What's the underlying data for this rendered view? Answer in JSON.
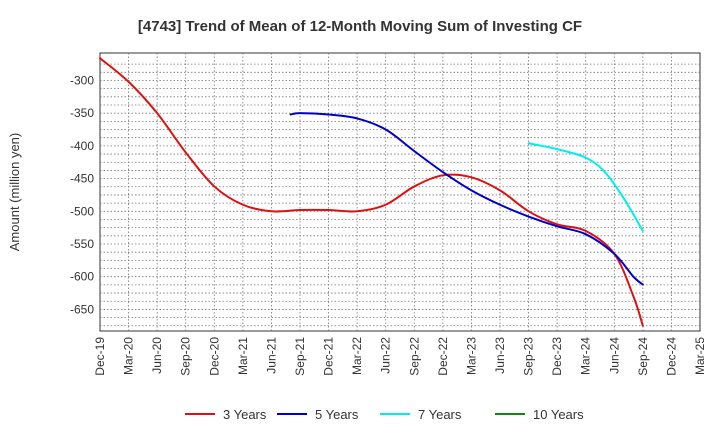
{
  "chart_data": {
    "type": "line",
    "title": "[4743]  Trend of Mean of 12-Month Moving Sum of Investing CF",
    "xlabel": "",
    "ylabel": "Amount (million yen)",
    "ylim": [
      -683,
      -258
    ],
    "yticks": [
      -300,
      -350,
      -400,
      -450,
      -500,
      -550,
      -600,
      -650
    ],
    "ytick_labels": [
      "-300",
      "-350",
      "-400",
      "-450",
      "-500",
      "-550",
      "-600",
      "-650"
    ],
    "categories": [
      "Dec-19",
      "Mar-20",
      "Jun-20",
      "Sep-20",
      "Dec-20",
      "Mar-21",
      "Jun-21",
      "Sep-21",
      "Dec-21",
      "Mar-22",
      "Jun-22",
      "Sep-22",
      "Dec-22",
      "Mar-23",
      "Jun-23",
      "Sep-23",
      "Dec-23",
      "Mar-24",
      "Jun-24",
      "Sep-24",
      "Dec-24",
      "Mar-25"
    ],
    "grid": true,
    "legend_position": "bottom",
    "series": [
      {
        "name": "3 Years",
        "color": "#dd1111",
        "points": [
          [
            0,
            -266
          ],
          [
            1,
            -302
          ],
          [
            2,
            -350
          ],
          [
            3,
            -410
          ],
          [
            4,
            -462
          ],
          [
            5,
            -490
          ],
          [
            6,
            -500
          ],
          [
            7,
            -498
          ],
          [
            8,
            -498
          ],
          [
            9,
            -500
          ],
          [
            10,
            -490
          ],
          [
            11,
            -462
          ],
          [
            12,
            -445
          ],
          [
            13,
            -448
          ],
          [
            14,
            -468
          ],
          [
            15,
            -500
          ],
          [
            16,
            -520
          ],
          [
            17,
            -530
          ],
          [
            18,
            -565
          ],
          [
            18.67,
            -630
          ],
          [
            19,
            -675
          ]
        ]
      },
      {
        "name": "5 Years",
        "color": "#0000cc",
        "points": [
          [
            6.67,
            -352
          ],
          [
            7,
            -350
          ],
          [
            8,
            -352
          ],
          [
            9,
            -358
          ],
          [
            10,
            -375
          ],
          [
            11,
            -408
          ],
          [
            12,
            -440
          ],
          [
            13,
            -468
          ],
          [
            14,
            -490
          ],
          [
            15,
            -508
          ],
          [
            16,
            -523
          ],
          [
            17,
            -535
          ],
          [
            18,
            -565
          ],
          [
            18.67,
            -600
          ],
          [
            19,
            -612
          ]
        ]
      },
      {
        "name": "7 Years",
        "color": "#00eeee",
        "points": [
          [
            15,
            -396
          ],
          [
            16,
            -405
          ],
          [
            17,
            -418
          ],
          [
            17.67,
            -440
          ],
          [
            18.33,
            -480
          ],
          [
            19,
            -530
          ]
        ]
      },
      {
        "name": "10 Years",
        "color": "#118811",
        "points": []
      }
    ]
  }
}
